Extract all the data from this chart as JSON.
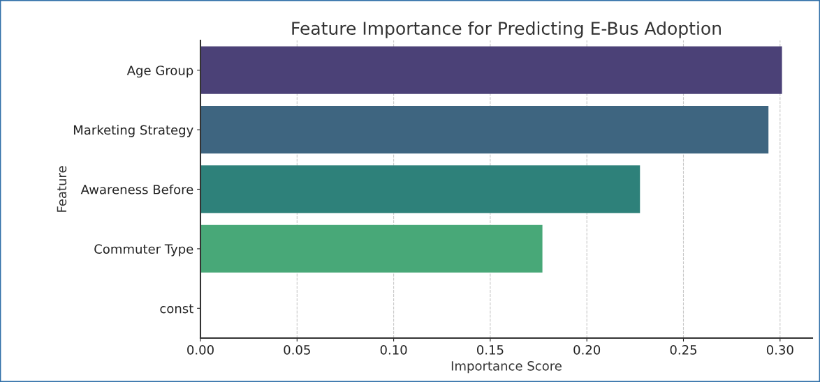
{
  "chart_data": {
    "type": "bar",
    "orientation": "horizontal",
    "title": "Feature Importance for Predicting E-Bus Adoption",
    "xlabel": "Importance Score",
    "ylabel": "Feature",
    "categories": [
      "Age Group",
      "Marketing Strategy",
      "Awareness Before",
      "Commuter Type",
      "const"
    ],
    "values": [
      0.301,
      0.294,
      0.2275,
      0.177,
      0
    ],
    "colors": [
      "#4b4177",
      "#3e6580",
      "#2e817a",
      "#48a878",
      null
    ],
    "xlim": [
      0,
      0.3167
    ],
    "xticks": [
      {
        "value": 0,
        "label": "0.00"
      },
      {
        "value": 0.05,
        "label": "0.05"
      },
      {
        "value": 0.1,
        "label": "0.10"
      },
      {
        "value": 0.15,
        "label": "0.15"
      },
      {
        "value": 0.2,
        "label": "0.20"
      },
      {
        "value": 0.25,
        "label": "0.25"
      },
      {
        "value": 0.3,
        "label": "0.30"
      }
    ],
    "grid": "x"
  }
}
